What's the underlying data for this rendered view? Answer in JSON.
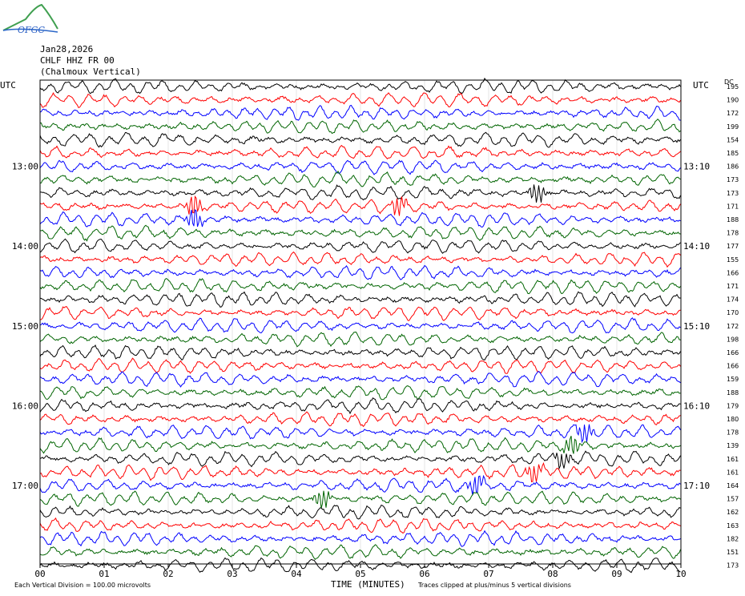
{
  "logo": {
    "text": "OFGC"
  },
  "header": {
    "date": "Jan28,2026",
    "station": "CHLF HHZ FR 00",
    "location": "(Chalmoux Vertical)"
  },
  "chart_data": {
    "type": "line",
    "title": "",
    "xlabel": "TIME (MINUTES)",
    "ylabel": "",
    "xlim": [
      0,
      10
    ],
    "x_ticks": [
      "00",
      "01",
      "02",
      "03",
      "04",
      "05",
      "06",
      "07",
      "08",
      "09",
      "10"
    ],
    "left_axis_title": "UTC",
    "right_axis_title": "UTC",
    "dc_title": "DC",
    "left_hour_labels": [
      "13:00",
      "14:00",
      "15:00",
      "16:00",
      "17:00"
    ],
    "right_hour_labels": [
      "13:10",
      "14:10",
      "15:10",
      "16:10",
      "17:10"
    ],
    "trace_colors": [
      "#000000",
      "#ff0000",
      "#0000ff",
      "#006400"
    ],
    "dc_offsets": [
      195,
      190,
      172,
      199,
      154,
      185,
      186,
      173,
      173,
      171,
      188,
      178,
      177,
      155,
      166,
      171,
      174,
      170,
      172,
      198,
      166,
      166,
      159,
      188,
      179,
      180,
      178,
      139,
      161,
      161,
      164,
      157,
      162,
      163,
      182,
      151,
      173
    ],
    "events": [
      {
        "trace": 9,
        "minute": 2.4,
        "color": "#ff0000"
      },
      {
        "trace": 10,
        "minute": 2.4,
        "color": "#0000ff"
      },
      {
        "trace": 9,
        "minute": 5.6,
        "color": "#ff0000"
      },
      {
        "trace": 8,
        "minute": 7.75,
        "color": "#000000"
      },
      {
        "trace": 26,
        "minute": 8.5,
        "color": "#0000ff"
      },
      {
        "trace": 27,
        "minute": 8.3,
        "color": "#006400"
      },
      {
        "trace": 28,
        "minute": 8.15,
        "color": "#000000"
      },
      {
        "trace": 29,
        "minute": 7.7,
        "color": "#ff0000"
      },
      {
        "trace": 30,
        "minute": 6.8,
        "color": "#0000ff"
      },
      {
        "trace": 31,
        "minute": 4.4,
        "color": "#006400"
      }
    ],
    "footer_left": "Each Vertical Division =  100.00 microvolts",
    "footer_right": "Traces clipped at plus/minus 5 vertical divisions"
  }
}
